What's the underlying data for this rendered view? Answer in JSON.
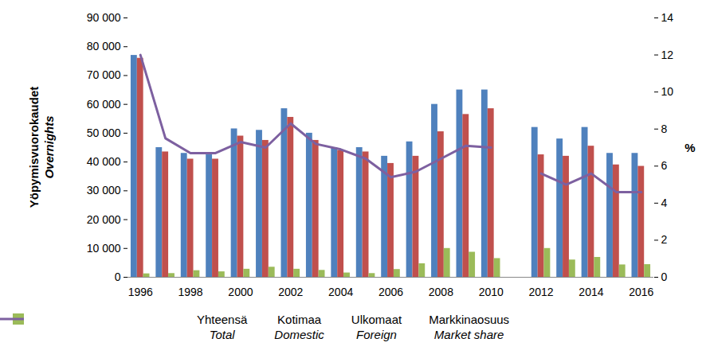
{
  "chart_data": {
    "type": "bar",
    "ylabel": "Yöpymisvuorokaudet\nOvernights",
    "y2label": "%",
    "categories": [
      "1996",
      null,
      "1998",
      null,
      "2000",
      null,
      "2002",
      null,
      "2004",
      null,
      "2006",
      null,
      "2008",
      null,
      "2010",
      null,
      "2012",
      null,
      "2014",
      null,
      "2016"
    ],
    "series": [
      {
        "name": "Yhteensä\nTotal",
        "type": "bar",
        "color": "#4f81bd",
        "values": [
          77000,
          45000,
          43000,
          42500,
          51500,
          51000,
          58500,
          50000,
          45000,
          45000,
          42000,
          47000,
          60000,
          65000,
          65000,
          null,
          52000,
          48000,
          52000,
          43000,
          43000
        ]
      },
      {
        "name": "Kotimaa\nDomestic",
        "type": "bar",
        "color": "#c0504d",
        "values": [
          76000,
          43500,
          41000,
          41000,
          49000,
          47500,
          55500,
          47500,
          44000,
          43500,
          39500,
          42000,
          50500,
          56500,
          58500,
          null,
          42500,
          42000,
          45500,
          39000,
          38500
        ]
      },
      {
        "name": "Ulkomaat\nForeign",
        "type": "bar",
        "color": "#9bbb59",
        "values": [
          1200,
          1300,
          2300,
          1900,
          2800,
          3500,
          2800,
          2400,
          1500,
          1300,
          2700,
          4700,
          10000,
          8700,
          6500,
          null,
          10000,
          6000,
          6900,
          4300,
          4400
        ]
      },
      {
        "name": "Markkinaosuus\nMarket share",
        "type": "line",
        "axis": "y2",
        "color": "#7d60a0",
        "values": [
          12.0,
          7.5,
          6.7,
          6.7,
          7.3,
          7.0,
          8.3,
          7.2,
          6.9,
          6.4,
          5.4,
          5.7,
          6.4,
          7.1,
          7.0,
          null,
          5.6,
          5.0,
          5.6,
          4.6,
          4.6
        ]
      }
    ],
    "ylim": [
      0,
      90000
    ],
    "yticks": [
      0,
      {
        "value": 10000,
        "label": "10 000"
      },
      {
        "value": 20000,
        "label": "20 000"
      },
      {
        "value": 30000,
        "label": "30 000"
      },
      {
        "value": 40000,
        "label": "40 000"
      },
      {
        "value": 50000,
        "label": "50 000"
      },
      {
        "value": 60000,
        "label": "60 000"
      },
      {
        "value": 70000,
        "label": "70 000"
      },
      {
        "value": 80000,
        "label": "80 000"
      },
      {
        "value": 90000,
        "label": "90 000"
      }
    ],
    "y2lim": [
      0,
      14
    ],
    "y2ticks": [
      0,
      2,
      4,
      6,
      8,
      10,
      12,
      14
    ],
    "grid": false,
    "legend": "bottom"
  }
}
